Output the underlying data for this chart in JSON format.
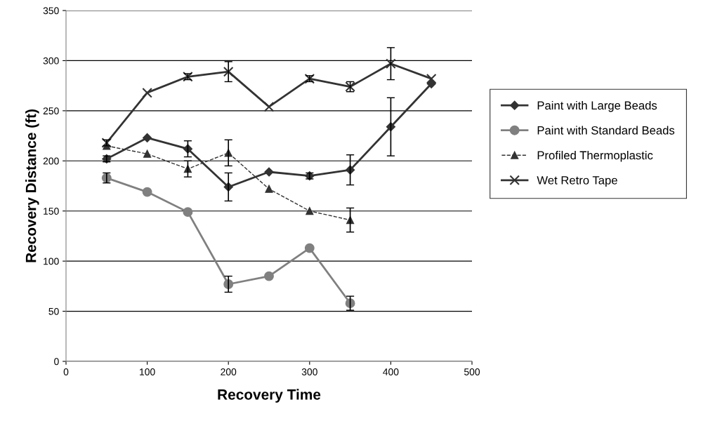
{
  "chart_data": {
    "type": "line",
    "xlabel": "Recovery Time",
    "ylabel": "Recovery Distance (ft)",
    "xlim": [
      0,
      500
    ],
    "xticks": [
      0,
      100,
      200,
      300,
      400,
      500
    ],
    "ylim": [
      0,
      350
    ],
    "yticks": [
      0,
      50,
      100,
      150,
      200,
      250,
      300,
      350
    ],
    "grid": "y",
    "legend": "right",
    "series": [
      {
        "name": "Paint with Large Beads",
        "color": "#333333",
        "marker": "diamond",
        "line_style": "solid",
        "x": [
          50,
          100,
          150,
          200,
          250,
          300,
          350,
          400,
          450
        ],
        "values": [
          202,
          223,
          212,
          174,
          189,
          185,
          191,
          234,
          277
        ],
        "errors": [
          3,
          null,
          8,
          14,
          null,
          3,
          15,
          29,
          null
        ]
      },
      {
        "name": "Paint with Standard Beads",
        "color": "#808080",
        "marker": "circle",
        "line_style": "solid",
        "x": [
          50,
          100,
          150,
          200,
          250,
          300,
          350
        ],
        "values": [
          183,
          169,
          149,
          77,
          85,
          113,
          58
        ],
        "errors": [
          5,
          null,
          null,
          8,
          null,
          null,
          7
        ]
      },
      {
        "name": "Profiled Thermoplastic",
        "color": "#333333",
        "marker": "triangle",
        "line_style": "dashed",
        "x": [
          50,
          100,
          150,
          200,
          250,
          300,
          350
        ],
        "values": [
          215,
          207,
          192,
          208,
          172,
          150,
          141
        ],
        "errors": [
          null,
          null,
          8,
          13,
          null,
          null,
          12
        ]
      },
      {
        "name": "Wet Retro Tape",
        "color": "#333333",
        "marker": "cross",
        "line_style": "solid",
        "x": [
          50,
          100,
          150,
          200,
          250,
          300,
          350,
          400,
          450
        ],
        "values": [
          218,
          268,
          284,
          289,
          254,
          282,
          274,
          297,
          282
        ],
        "errors": [
          3,
          null,
          3,
          10,
          null,
          3,
          5,
          16,
          null
        ]
      }
    ]
  }
}
